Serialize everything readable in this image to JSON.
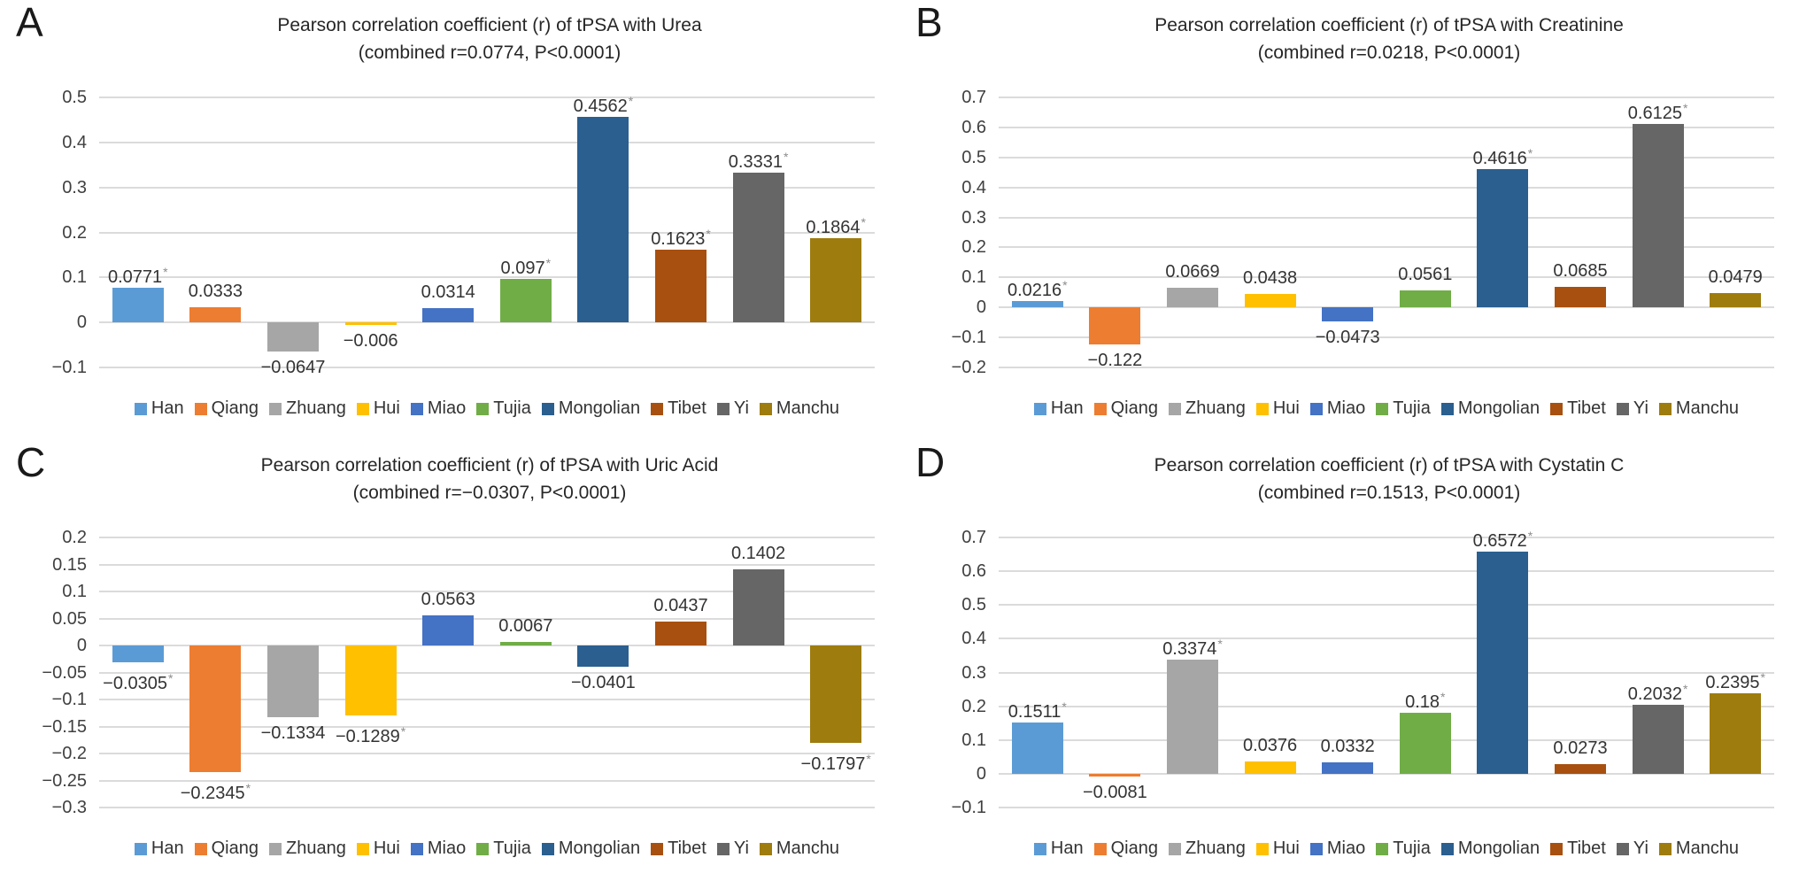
{
  "page": {
    "background": "#ffffff"
  },
  "legend": {
    "items": [
      {
        "label": "Han",
        "color": "#5B9BD5"
      },
      {
        "label": "Qiang",
        "color": "#ED7D31"
      },
      {
        "label": "Zhuang",
        "color": "#A6A6A6"
      },
      {
        "label": "Hui",
        "color": "#FFC000"
      },
      {
        "label": "Miao",
        "color": "#4472C4"
      },
      {
        "label": "Tujia",
        "color": "#70AD47"
      },
      {
        "label": "Mongolian",
        "color": "#2A5F8F"
      },
      {
        "label": "Tibet",
        "color": "#A8500F"
      },
      {
        "label": "Yi",
        "color": "#666666"
      },
      {
        "label": "Manchu",
        "color": "#9E7C0E"
      }
    ]
  },
  "chart_data": [
    {
      "panel_label": "A",
      "type": "bar",
      "title": "Pearson correlation coefficient (r) of tPSA with Urea",
      "subtitle": "(combined r=0.0774, P<0.0001)",
      "xlabel": "",
      "ylabel": "",
      "grid": true,
      "legend_position": "bottom",
      "categories": [
        "Han",
        "Qiang",
        "Zhuang",
        "Hui",
        "Miao",
        "Tujia",
        "Mongolian",
        "Tibet",
        "Yi",
        "Manchu"
      ],
      "values": [
        0.0771,
        0.0333,
        -0.0647,
        -0.006,
        0.0314,
        0.097,
        0.4562,
        0.1623,
        0.3331,
        0.1864
      ],
      "bar_labels": [
        "0.0771",
        "0.0333",
        "−0.0647",
        "−0.006",
        "0.0314",
        "0.097",
        "0.4562",
        "0.1623",
        "0.3331",
        "0.1864"
      ],
      "significant": [
        true,
        false,
        false,
        false,
        false,
        true,
        true,
        true,
        true,
        true
      ],
      "ylim": [
        -0.1,
        0.5
      ],
      "ytick_values": [
        0.5,
        0.4,
        0.3,
        0.2,
        0.1,
        0,
        -0.1
      ],
      "ytick_labels": [
        "0.5",
        "0.4",
        "0.3",
        "0.2",
        "0.1",
        "0",
        "−0.1"
      ]
    },
    {
      "panel_label": "B",
      "type": "bar",
      "title": "Pearson correlation coefficient (r) of tPSA with Creatinine",
      "subtitle": "(combined r=0.0218, P<0.0001)",
      "xlabel": "",
      "ylabel": "",
      "grid": true,
      "legend_position": "bottom",
      "categories": [
        "Han",
        "Qiang",
        "Zhuang",
        "Hui",
        "Miao",
        "Tujia",
        "Mongolian",
        "Tibet",
        "Yi",
        "Manchu"
      ],
      "values": [
        0.0216,
        -0.122,
        0.0669,
        0.0438,
        -0.0473,
        0.0561,
        0.4616,
        0.0685,
        0.6125,
        0.0479
      ],
      "bar_labels": [
        "0.0216",
        "−0.122",
        "0.0669",
        "0.0438",
        "−0.0473",
        "0.0561",
        "0.4616",
        "0.0685",
        "0.6125",
        "0.0479"
      ],
      "significant": [
        true,
        false,
        false,
        false,
        false,
        false,
        true,
        false,
        true,
        false
      ],
      "ylim": [
        -0.2,
        0.7
      ],
      "ytick_values": [
        0.7,
        0.6,
        0.5,
        0.4,
        0.3,
        0.2,
        0.1,
        0,
        -0.1,
        -0.2
      ],
      "ytick_labels": [
        "0.7",
        "0.6",
        "0.5",
        "0.4",
        "0.3",
        "0.2",
        "0.1",
        "0",
        "−0.1",
        "−0.2"
      ]
    },
    {
      "panel_label": "C",
      "type": "bar",
      "title": "Pearson correlation coefficient (r) of tPSA with Uric Acid",
      "subtitle": "(combined r=−0.0307, P<0.0001)",
      "xlabel": "",
      "ylabel": "",
      "grid": true,
      "legend_position": "bottom",
      "categories": [
        "Han",
        "Qiang",
        "Zhuang",
        "Hui",
        "Miao",
        "Tujia",
        "Mongolian",
        "Tibet",
        "Yi",
        "Manchu"
      ],
      "values": [
        -0.0305,
        -0.2345,
        -0.1334,
        -0.1289,
        0.0563,
        0.0067,
        -0.0401,
        0.0437,
        0.1402,
        -0.1797
      ],
      "bar_labels": [
        "−0.0305",
        "−0.2345",
        "−0.1334",
        "−0.1289",
        "0.0563",
        "0.0067",
        "−0.0401",
        "0.0437",
        "0.1402",
        "−0.1797"
      ],
      "significant": [
        true,
        true,
        false,
        true,
        false,
        false,
        false,
        false,
        false,
        true
      ],
      "ylim": [
        -0.3,
        0.2
      ],
      "ytick_values": [
        0.2,
        0.15,
        0.1,
        0.05,
        0,
        -0.05,
        -0.1,
        -0.15,
        -0.2,
        -0.25,
        -0.3
      ],
      "ytick_labels": [
        "0.2",
        "0.15",
        "0.1",
        "0.05",
        "0",
        "−0.05",
        "−0.1",
        "−0.15",
        "−0.2",
        "−0.25",
        "−0.3"
      ]
    },
    {
      "panel_label": "D",
      "type": "bar",
      "title": "Pearson correlation coefficient (r) of tPSA with Cystatin C",
      "subtitle": "(combined r=0.1513, P<0.0001)",
      "xlabel": "",
      "ylabel": "",
      "grid": true,
      "legend_position": "bottom",
      "categories": [
        "Han",
        "Qiang",
        "Zhuang",
        "Hui",
        "Miao",
        "Tujia",
        "Mongolian",
        "Tibet",
        "Yi",
        "Manchu"
      ],
      "values": [
        0.1511,
        -0.0081,
        0.3374,
        0.0376,
        0.0332,
        0.18,
        0.6572,
        0.0273,
        0.2032,
        0.2395
      ],
      "bar_labels": [
        "0.1511",
        "−0.0081",
        "0.3374",
        "0.0376",
        "0.0332",
        "0.18",
        "0.6572",
        "0.0273",
        "0.2032",
        "0.2395"
      ],
      "significant": [
        true,
        false,
        true,
        false,
        false,
        true,
        true,
        false,
        true,
        true
      ],
      "ylim": [
        -0.1,
        0.7
      ],
      "ytick_values": [
        0.7,
        0.6,
        0.5,
        0.4,
        0.3,
        0.2,
        0.1,
        0,
        -0.1
      ],
      "ytick_labels": [
        "0.7",
        "0.6",
        "0.5",
        "0.4",
        "0.3",
        "0.2",
        "0.1",
        "0",
        "−0.1"
      ]
    }
  ]
}
